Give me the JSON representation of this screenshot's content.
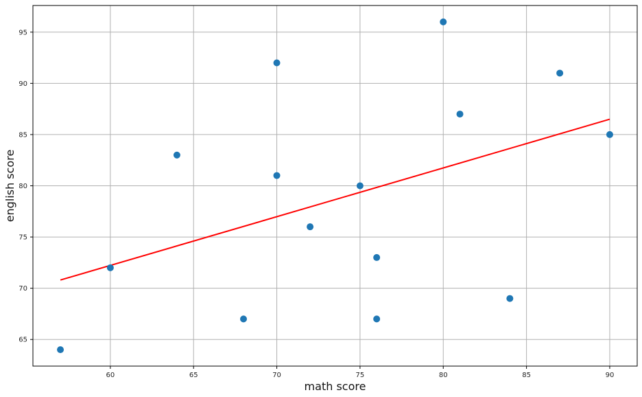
{
  "chart_data": {
    "type": "scatter",
    "title": "",
    "xlabel": "math score",
    "ylabel": "english score",
    "xlim": [
      55.35,
      91.65
    ],
    "ylim": [
      62.4,
      97.6
    ],
    "grid": true,
    "x_ticks": [
      60,
      65,
      70,
      75,
      80,
      85,
      90
    ],
    "y_ticks": [
      65,
      70,
      75,
      80,
      85,
      90,
      95
    ],
    "series": [
      {
        "type": "scatter",
        "color": "#1f77b4",
        "points": [
          {
            "x": 57,
            "y": 64
          },
          {
            "x": 60,
            "y": 72
          },
          {
            "x": 64,
            "y": 83
          },
          {
            "x": 68,
            "y": 67
          },
          {
            "x": 70,
            "y": 92
          },
          {
            "x": 70,
            "y": 81
          },
          {
            "x": 72,
            "y": 76
          },
          {
            "x": 75,
            "y": 80
          },
          {
            "x": 76,
            "y": 73
          },
          {
            "x": 76,
            "y": 67
          },
          {
            "x": 80,
            "y": 96
          },
          {
            "x": 81,
            "y": 87
          },
          {
            "x": 84,
            "y": 69
          },
          {
            "x": 87,
            "y": 91
          },
          {
            "x": 90,
            "y": 85
          }
        ]
      },
      {
        "type": "line",
        "color": "#ff0000",
        "points": [
          {
            "x": 57,
            "y": 70.8
          },
          {
            "x": 90,
            "y": 86.5
          }
        ]
      }
    ]
  }
}
